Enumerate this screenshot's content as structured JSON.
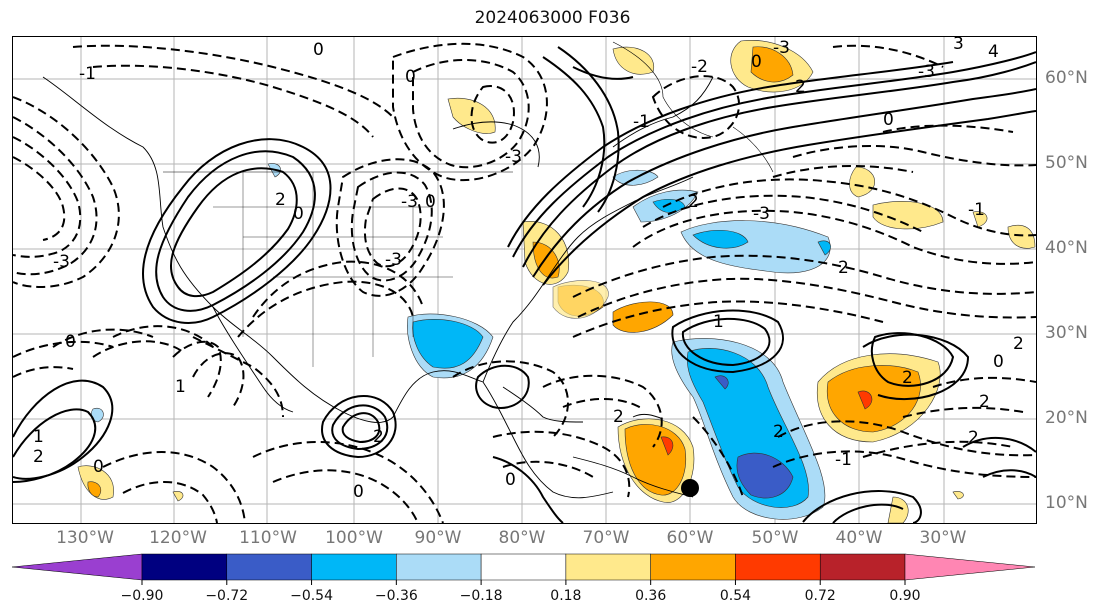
{
  "title": "2024063000 F036",
  "lon_labels": [
    "130°W",
    "120°W",
    "110°W",
    "100°W",
    "90°W",
    "80°W",
    "70°W",
    "60°W",
    "50°W",
    "40°W",
    "30°W"
  ],
  "lat_labels": [
    "60°N",
    "50°N",
    "40°N",
    "30°N",
    "20°N",
    "10°N"
  ],
  "colorbar": {
    "tick_labels": [
      "−0.90",
      "−0.72",
      "−0.54",
      "−0.36",
      "−0.18",
      "0.18",
      "0.36",
      "0.54",
      "0.72",
      "0.90"
    ],
    "colors": [
      "#9a3fd0",
      "#000080",
      "#3a5cc7",
      "#00b7f7",
      "#abdcf7",
      "#ffffff",
      "#ffe98c",
      "#ffa600",
      "#ff3a00",
      "#b8222a",
      "#ff86b3"
    ]
  },
  "contour_labels": [
    "-1",
    "0",
    "1",
    "2",
    "3",
    "4",
    "-2",
    "-3"
  ]
}
